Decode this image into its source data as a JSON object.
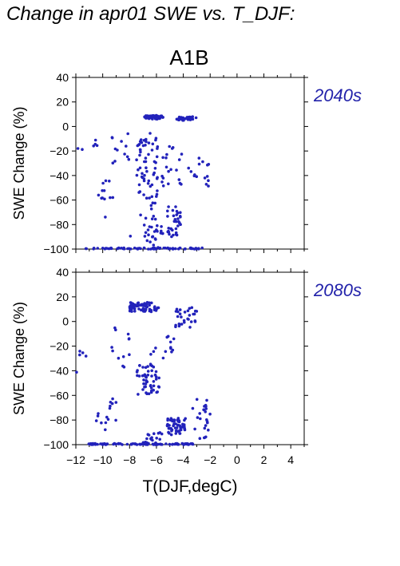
{
  "title": "Change in apr01 SWE vs. T_DJF:",
  "scenario": "A1B",
  "colors": {
    "points": "#2222bb",
    "period_label": "#2222aa",
    "axes": "#000000"
  },
  "chart_data": [
    {
      "type": "scatter",
      "period": "2040s",
      "ylabel": "SWE Change (%)",
      "xlabel": "",
      "xlim": [
        -12,
        5
      ],
      "ylim": [
        -100,
        40
      ],
      "yticks": [
        40,
        20,
        0,
        -20,
        -40,
        -60,
        -80,
        -100
      ],
      "xticks": [],
      "clusters": [
        {
          "x": [
            -6.9,
            -5.5
          ],
          "y": [
            6,
            9
          ],
          "n": 55
        },
        {
          "x": [
            -4.5,
            -3.0
          ],
          "y": [
            5,
            8
          ],
          "n": 30
        },
        {
          "x": [
            -7.5,
            -6.5
          ],
          "y": [
            -60,
            -10
          ],
          "n": 40
        },
        {
          "x": [
            -6.5,
            -5.8
          ],
          "y": [
            -70,
            -5
          ],
          "n": 25
        },
        {
          "x": [
            -5.2,
            -4.2
          ],
          "y": [
            -90,
            -65
          ],
          "n": 35
        },
        {
          "x": [
            -5.6,
            -4.0
          ],
          "y": [
            -50,
            -15
          ],
          "n": 20
        },
        {
          "x": [
            -10.5,
            -9.2
          ],
          "y": [
            -75,
            -40
          ],
          "n": 12
        },
        {
          "x": [
            -9.5,
            -8.0
          ],
          "y": [
            -30,
            -5
          ],
          "n": 12
        },
        {
          "x": [
            -11.3,
            -2.5
          ],
          "y": [
            -100,
            -99
          ],
          "n": 70
        },
        {
          "x": [
            -7.0,
            -5.5
          ],
          "y": [
            -100,
            -80
          ],
          "n": 20
        },
        {
          "x": [
            -3.8,
            -2.0
          ],
          "y": [
            -50,
            -25
          ],
          "n": 15
        },
        {
          "x": [
            -12.0,
            -10.0
          ],
          "y": [
            -20,
            -5
          ],
          "n": 6
        },
        {
          "x": [
            -8.5,
            -6.0
          ],
          "y": [
            -90,
            -70
          ],
          "n": 10
        }
      ]
    },
    {
      "type": "scatter",
      "period": "2080s",
      "ylabel": "SWE Change (%)",
      "xlabel": "T(DJF,degC)",
      "xlim": [
        -12,
        5
      ],
      "ylim": [
        -100,
        40
      ],
      "yticks": [
        40,
        20,
        0,
        -20,
        -40,
        -60,
        -80,
        -100
      ],
      "xticks": [
        -12,
        -10,
        -8,
        -6,
        -4,
        -2,
        0,
        2,
        4
      ],
      "clusters": [
        {
          "x": [
            -8.0,
            -5.8
          ],
          "y": [
            8,
            16
          ],
          "n": 70
        },
        {
          "x": [
            -4.6,
            -3.0
          ],
          "y": [
            -5,
            12
          ],
          "n": 30
        },
        {
          "x": [
            -7.5,
            -6.3
          ],
          "y": [
            -60,
            -35
          ],
          "n": 35
        },
        {
          "x": [
            -5.2,
            -3.8
          ],
          "y": [
            -92,
            -78
          ],
          "n": 55
        },
        {
          "x": [
            -11.2,
            -3.0
          ],
          "y": [
            -100,
            -99
          ],
          "n": 90
        },
        {
          "x": [
            -7.0,
            -5.5
          ],
          "y": [
            -100,
            -90
          ],
          "n": 20
        },
        {
          "x": [
            -9.5,
            -8.0
          ],
          "y": [
            -40,
            -5
          ],
          "n": 12
        },
        {
          "x": [
            -6.5,
            -5.8
          ],
          "y": [
            -60,
            -20
          ],
          "n": 20
        },
        {
          "x": [
            -3.5,
            -2.0
          ],
          "y": [
            -95,
            -60
          ],
          "n": 25
        },
        {
          "x": [
            -12.0,
            -11.2
          ],
          "y": [
            -50,
            -20
          ],
          "n": 5
        },
        {
          "x": [
            -10.5,
            -9.0
          ],
          "y": [
            -90,
            -60
          ],
          "n": 15
        },
        {
          "x": [
            -5.5,
            -4.5
          ],
          "y": [
            -30,
            -10
          ],
          "n": 10
        }
      ]
    }
  ]
}
